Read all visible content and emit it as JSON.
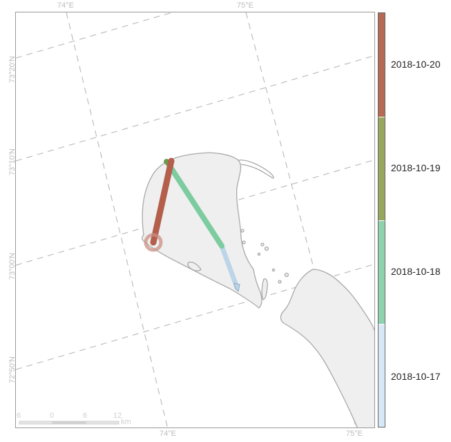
{
  "map": {
    "lon_labels_top": [
      "74°E",
      "75°E"
    ],
    "lon_labels_bottom": [
      "74°E",
      "75°E"
    ],
    "lat_labels_left": [
      "73°20'N",
      "73°10'N",
      "73°00'N",
      "72°50'N"
    ],
    "colors": {
      "land_fill": "#efefef",
      "land_stroke": "#a8a8a8",
      "graticule": "#bdbdbd",
      "frame": "#999999"
    }
  },
  "track": {
    "segments": [
      {
        "date": "2018-10-17",
        "color": "#bcd5e8"
      },
      {
        "date": "2018-10-18",
        "color": "#7dcc9f"
      },
      {
        "date": "2018-10-19",
        "color": "#6b9a4f"
      },
      {
        "date": "2018-10-20",
        "color": "#b45e4c"
      }
    ],
    "end_marker_color": "#c98f82"
  },
  "legend": {
    "items": [
      {
        "label": "2018-10-20",
        "color": "#b66a55"
      },
      {
        "label": "2018-10-19",
        "color": "#97a75e"
      },
      {
        "label": "2018-10-18",
        "color": "#8fd3ae"
      },
      {
        "label": "2018-10-17",
        "color": "#d8e8f6"
      }
    ]
  },
  "scale_bar": {
    "ticks": [
      "6",
      "0",
      "6",
      "12"
    ],
    "unit": "km"
  }
}
